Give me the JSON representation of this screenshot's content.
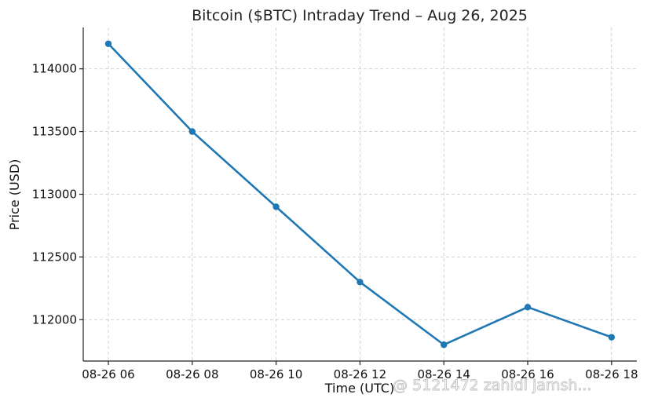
{
  "chart_data": {
    "type": "line",
    "title": "Bitcoin ($BTC) Intraday Trend – Aug 26, 2025",
    "xlabel": "Time (UTC)",
    "ylabel": "Price (USD)",
    "categories": [
      "08-26 06",
      "08-26 08",
      "08-26 10",
      "08-26 12",
      "08-26 14",
      "08-26 16",
      "08-26 18"
    ],
    "series": [
      {
        "values": [
          114200,
          113500,
          112900,
          112300,
          111800,
          112100,
          111860
        ]
      }
    ],
    "ylim": [
      111670,
      114330
    ],
    "yticks": [
      112000,
      112500,
      113000,
      113500,
      114000
    ],
    "grid": true,
    "marker": "circle",
    "color": "#1f77b4"
  },
  "watermark": {
    "text": "@ 5121472 zahidi jamsh..."
  }
}
